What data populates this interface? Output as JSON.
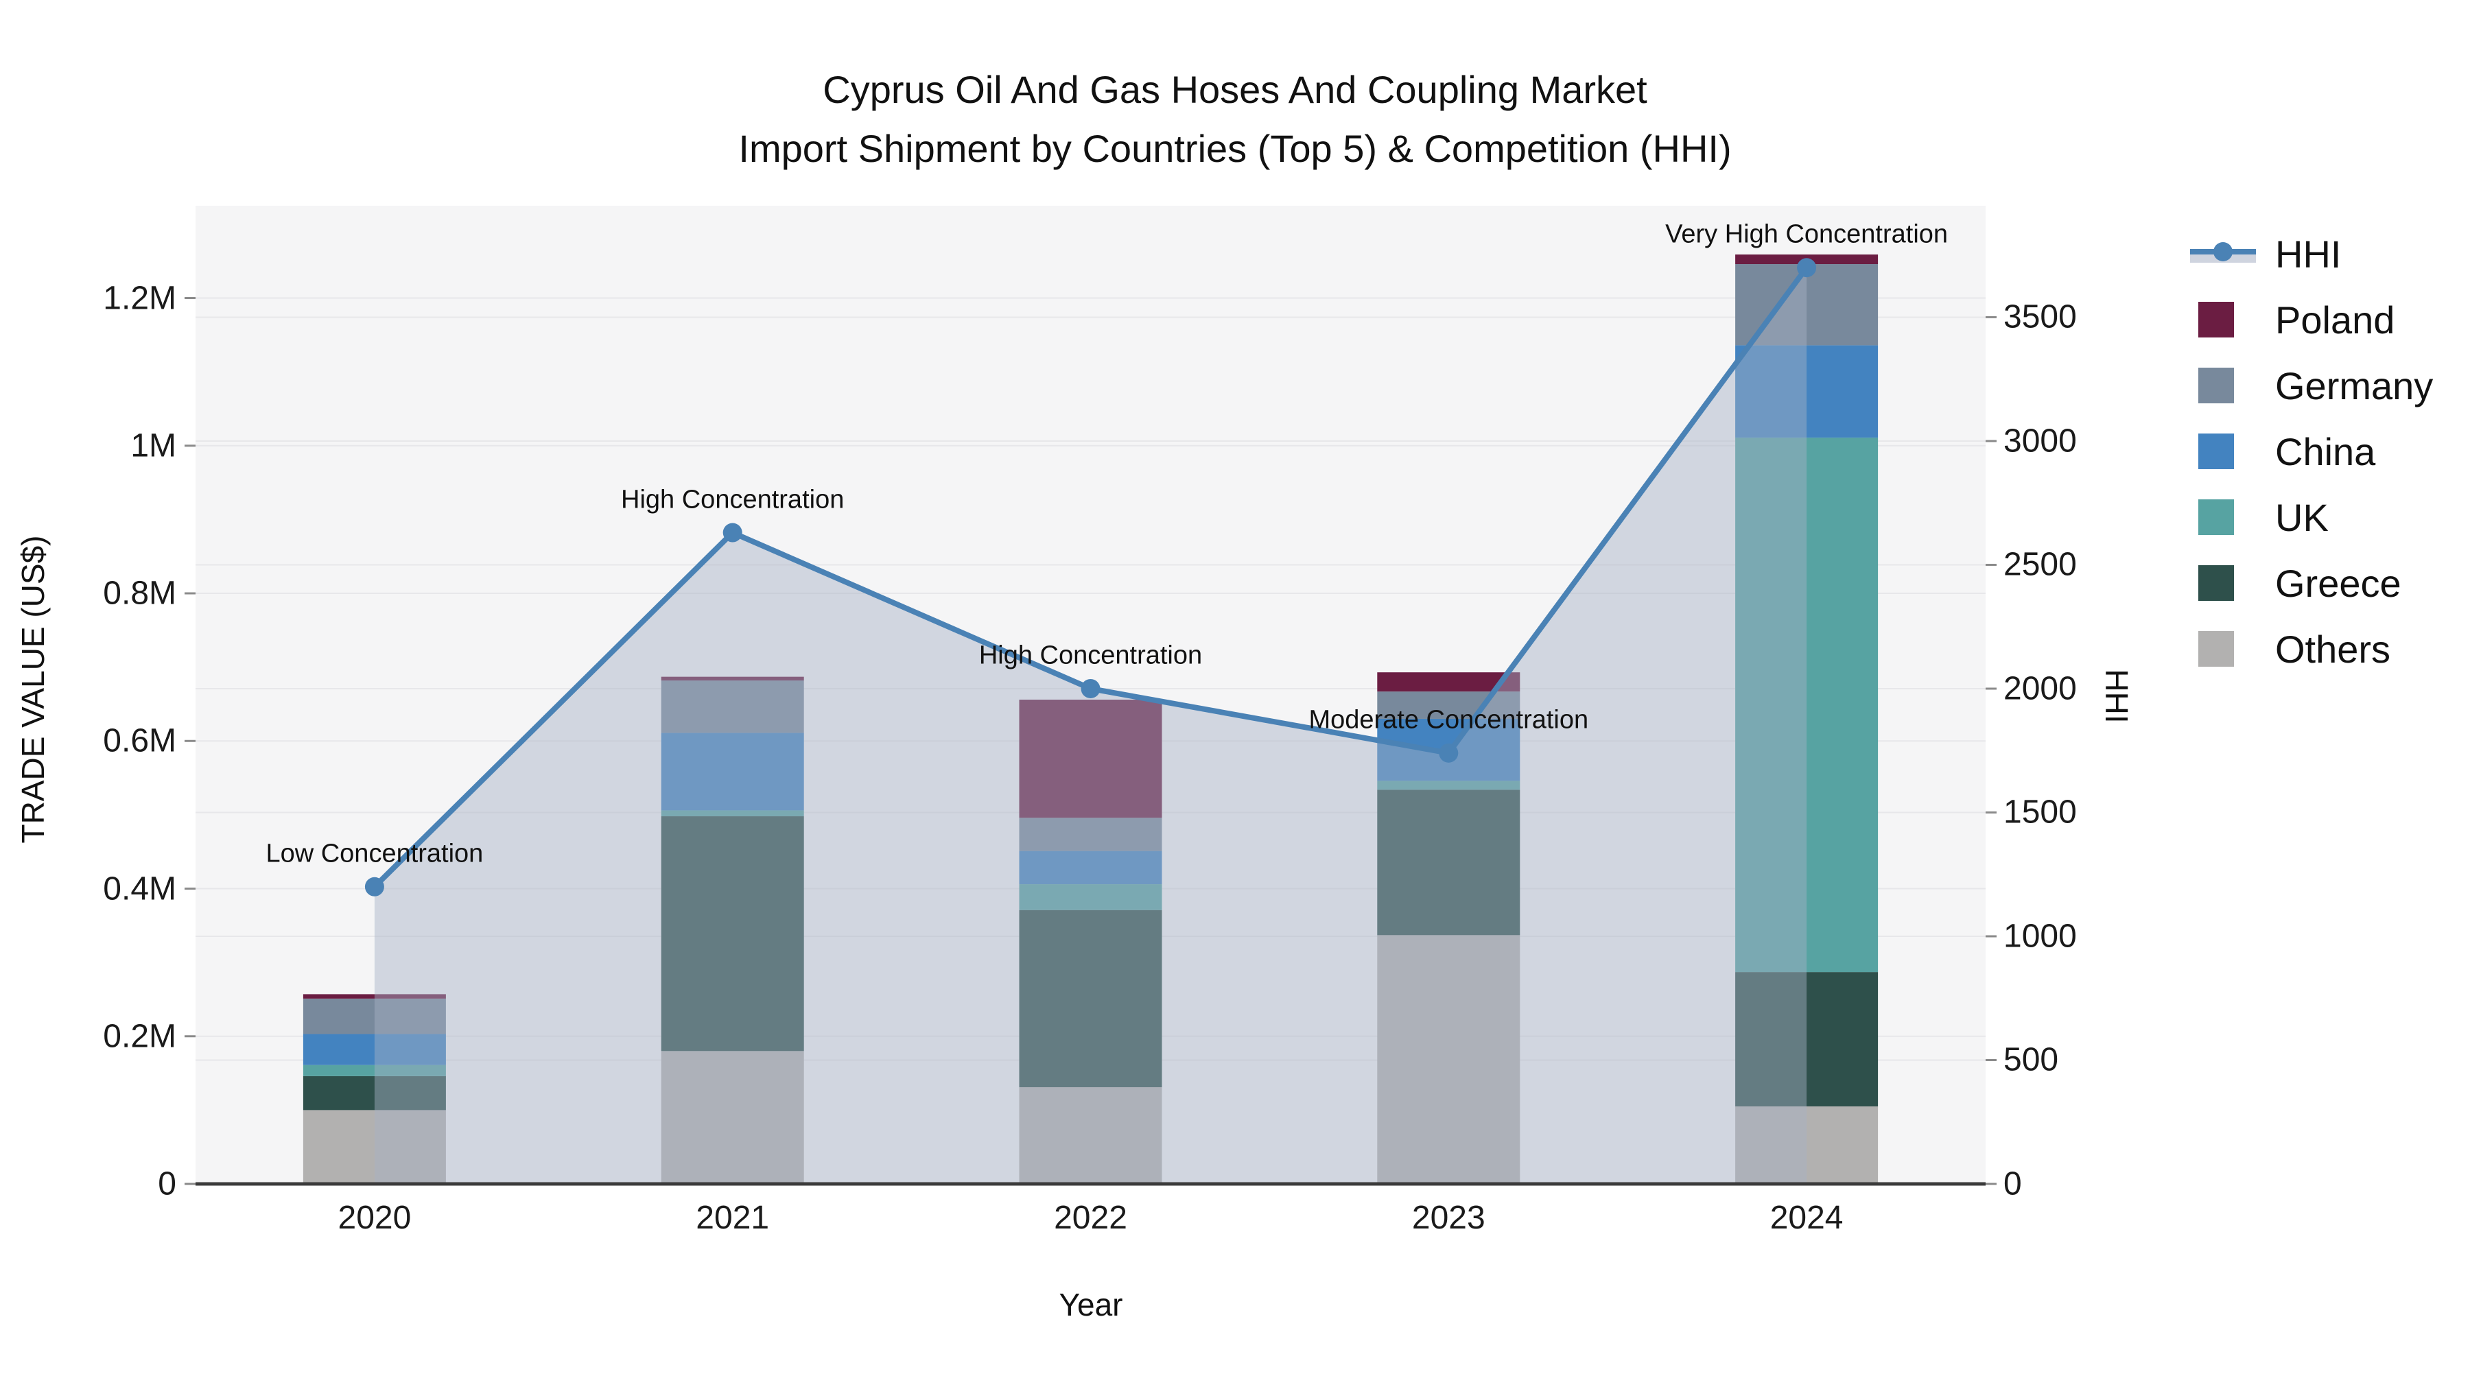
{
  "title": {
    "line1": "Cyprus Oil And Gas Hoses And Coupling Market",
    "line2": "Import Shipment by Countries (Top 5) & Competition (HHI)"
  },
  "axes": {
    "x": {
      "label": "Year"
    },
    "y_left": {
      "label": "TRADE VALUE (US$)",
      "tick_labels": [
        "0",
        "0.2M",
        "0.4M",
        "0.6M",
        "0.8M",
        "1M",
        "1.2M"
      ],
      "tick_values": [
        0,
        200000,
        400000,
        600000,
        800000,
        1000000,
        1200000
      ],
      "max": 1325000
    },
    "y_right": {
      "label": "HHI",
      "tick_labels": [
        "0",
        "500",
        "1000",
        "1500",
        "2000",
        "2500",
        "3000",
        "3500"
      ],
      "tick_values": [
        0,
        500,
        1000,
        1500,
        2000,
        2500,
        3000,
        3500
      ],
      "max": 3950
    }
  },
  "legend": {
    "items": [
      {
        "label": "HHI",
        "type": "line",
        "color": "#4a82b5"
      },
      {
        "label": "Poland",
        "type": "box",
        "color": "#6b1d42"
      },
      {
        "label": "Germany",
        "type": "box",
        "color": "#78899c"
      },
      {
        "label": "China",
        "type": "box",
        "color": "#4383c0"
      },
      {
        "label": "UK",
        "type": "box",
        "color": "#57a3a2"
      },
      {
        "label": "Greece",
        "type": "box",
        "color": "#2e504b"
      },
      {
        "label": "Others",
        "type": "box",
        "color": "#b2b1b0"
      }
    ]
  },
  "colors": {
    "plot_bg": "#f5f5f6",
    "grid": "#e7e7ea",
    "axis_line": "#3a3a3a",
    "hhi_line": "#4a82b5",
    "hhi_area": "rgba(167,177,197,0.45)"
  },
  "chart_data": {
    "type": "combo: stacked-bar (left axis) + line with area fill (right axis)",
    "categories": [
      "2020",
      "2021",
      "2022",
      "2023",
      "2024"
    ],
    "stack_order_bottom_to_top": [
      "Others",
      "Greece",
      "UK",
      "China",
      "Germany",
      "Poland"
    ],
    "series": [
      {
        "name": "Others",
        "color": "#b2b1b0",
        "values": [
          100000,
          180000,
          131000,
          337000,
          105000
        ]
      },
      {
        "name": "Greece",
        "color": "#2e504b",
        "values": [
          46000,
          318000,
          240000,
          197000,
          182000
        ]
      },
      {
        "name": "UK",
        "color": "#57a3a2",
        "values": [
          15000,
          8000,
          35000,
          12000,
          724000
        ]
      },
      {
        "name": "China",
        "color": "#4383c0",
        "values": [
          42000,
          105000,
          45000,
          84000,
          125000
        ]
      },
      {
        "name": "Germany",
        "color": "#78899c",
        "values": [
          48000,
          71000,
          45000,
          37000,
          110000
        ]
      },
      {
        "name": "Poland",
        "color": "#6b1d42",
        "values": [
          6000,
          5000,
          160000,
          26000,
          13000
        ]
      }
    ],
    "line_series": {
      "name": "HHI",
      "axis": "right",
      "color": "#4a82b5",
      "values": [
        1200,
        2630,
        2000,
        1740,
        3700
      ]
    },
    "annotations": [
      {
        "category": "2020",
        "text": "Low Concentration"
      },
      {
        "category": "2021",
        "text": "High Concentration"
      },
      {
        "category": "2022",
        "text": "High Concentration"
      },
      {
        "category": "2023",
        "text": "Moderate Concentration"
      },
      {
        "category": "2024",
        "text": "Very High Concentration"
      }
    ],
    "xlabel": "Year",
    "ylabel_left": "TRADE VALUE (US$)",
    "ylabel_right": "HHI",
    "ylim_left": [
      0,
      1325000
    ],
    "ylim_right": [
      0,
      3950
    ],
    "grid": true,
    "legend_position": "right"
  }
}
